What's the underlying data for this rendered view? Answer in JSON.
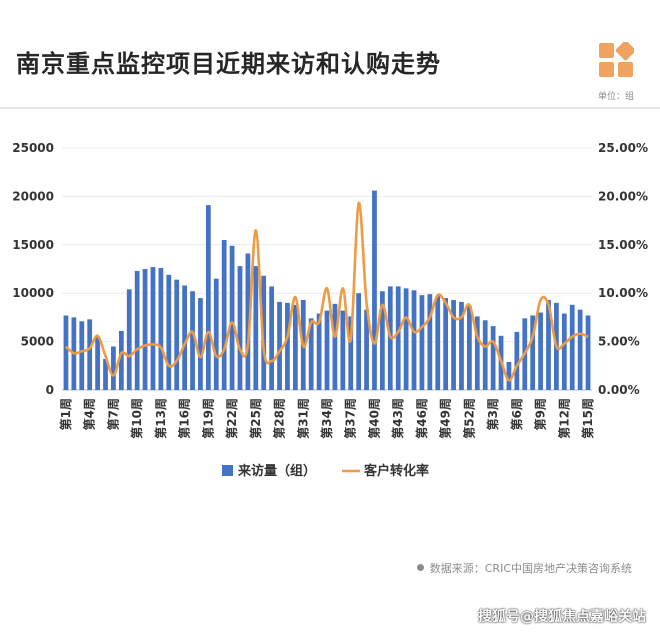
{
  "header": {
    "title": "南京重点监控项目近期来访和认购走势",
    "unit": "单位：组",
    "logo_icon": "orange-squares-logo-icon",
    "logo_color": "#f0a35e"
  },
  "source": {
    "text": "数据来源：CRIC中国房地产决策咨询系统"
  },
  "footer": {
    "text": "搜狐号@搜狐焦点嘉峪关站"
  },
  "chart_data": {
    "type": "bar",
    "title": "",
    "xlabel": "",
    "ylabel": "",
    "ylim": [
      0,
      25000
    ],
    "y2lim": [
      0,
      25
    ],
    "left_ticks": [
      "0",
      "5000",
      "10000",
      "15000",
      "20000",
      "25000"
    ],
    "right_ticks": [
      "0.00%",
      "5.00%",
      "10.00%",
      "15.00%",
      "20.00%",
      "25.00%"
    ],
    "grid": true,
    "legend": "bottom",
    "categories": [
      "第1周",
      "第2周",
      "第3周",
      "第4周",
      "第5周",
      "第6周",
      "第7周",
      "第8周",
      "第9周",
      "第10周",
      "第11周",
      "第12周",
      "第13周",
      "第14周",
      "第15周",
      "第16周",
      "第17周",
      "第18周",
      "第19周",
      "第20周",
      "第21周",
      "第22周",
      "第23周",
      "第24周",
      "第25周",
      "第26周",
      "第27周",
      "第28周",
      "第29周",
      "第30周",
      "第31周",
      "第32周",
      "第33周",
      "第34周",
      "第35周",
      "第36周",
      "第37周",
      "第38周",
      "第39周",
      "第40周",
      "第41周",
      "第42周",
      "第43周",
      "第44周",
      "第45周",
      "第46周",
      "第47周",
      "第48周",
      "第49周",
      "第50周",
      "第51周",
      "第52周",
      "第1周",
      "第2周",
      "第3周",
      "第4周",
      "第5周",
      "第6周",
      "第7周",
      "第8周",
      "第9周",
      "第10周",
      "第11周",
      "第12周",
      "第13周",
      "第14周",
      "第15周"
    ],
    "label_indices": [
      0,
      3,
      6,
      9,
      12,
      15,
      18,
      21,
      24,
      27,
      30,
      33,
      36,
      39,
      42,
      45,
      48,
      51,
      54,
      57,
      60,
      63,
      66
    ],
    "series": [
      {
        "name": "来访量（组）",
        "kind": "bar",
        "axis": "left",
        "color": "#4472c4",
        "values": [
          7700,
          7500,
          7100,
          7300,
          5500,
          3200,
          4500,
          6100,
          10400,
          12300,
          12500,
          12700,
          12600,
          11900,
          11400,
          10800,
          10200,
          9500,
          19100,
          11500,
          15500,
          14900,
          12800,
          14100,
          12800,
          11800,
          10700,
          9100,
          9000,
          8800,
          9300,
          7400,
          7900,
          8200,
          8900,
          8200,
          7600,
          10000,
          8300,
          20600,
          10200,
          10700,
          10700,
          10500,
          10300,
          9800,
          9900,
          9700,
          9500,
          9300,
          9100,
          8700,
          7600,
          7200,
          6600,
          5600,
          2900,
          6000,
          7400,
          7700,
          8000,
          9300,
          9000,
          7900,
          8800,
          8300,
          7700
        ]
      },
      {
        "name": "客户转化率",
        "kind": "line",
        "axis": "right",
        "color": "#ed9b45",
        "values": [
          4.5,
          3.8,
          4.0,
          4.3,
          5.6,
          3.5,
          1.5,
          3.8,
          3.5,
          4.2,
          4.6,
          4.7,
          4.4,
          2.5,
          3.0,
          4.7,
          6.0,
          3.4,
          6.0,
          3.5,
          4.2,
          7.0,
          4.2,
          4.6,
          16.5,
          4.2,
          3.0,
          4.0,
          5.5,
          9.6,
          4.5,
          7.0,
          7.0,
          10.5,
          5.5,
          10.5,
          5.2,
          19.3,
          9.0,
          4.8,
          8.8,
          5.5,
          6.0,
          7.5,
          6.0,
          6.5,
          7.5,
          9.8,
          9.0,
          7.5,
          7.5,
          8.8,
          5.5,
          4.5,
          5.0,
          3.0,
          1.0,
          2.5,
          3.8,
          5.5,
          9.3,
          8.8,
          4.5,
          4.8,
          5.5,
          5.8,
          5.5
        ]
      }
    ]
  }
}
